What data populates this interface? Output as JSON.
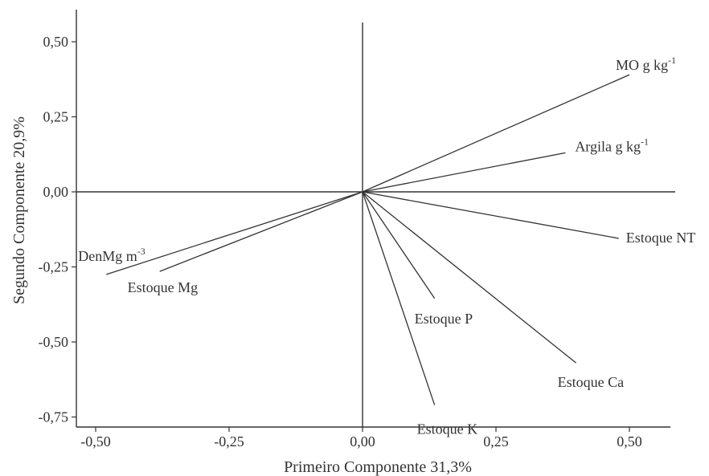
{
  "chart_data": {
    "type": "scatter",
    "subtype": "pca-biplot-vectors",
    "xlabel": "Primeiro Componente  31,3%",
    "ylabel": "Segundo Componente  20,9%",
    "xlim": [
      -0.58,
      0.58
    ],
    "ylim": [
      -0.78,
      0.61
    ],
    "x_ticks": [
      -0.5,
      -0.25,
      0.0,
      0.25,
      0.5
    ],
    "x_tick_labels": [
      "-0,50",
      "-0,25",
      "0,00",
      "0,25",
      "0,50"
    ],
    "y_ticks": [
      0.5,
      0.25,
      0.0,
      -0.5,
      -0.75
    ],
    "y_tick_labels": [
      "0,50",
      "0,25",
      "0,00",
      "-0,50",
      "-0,75"
    ],
    "y_tick_extra": {
      "value": -0.25,
      "label": "-0,25"
    },
    "grid": false,
    "zero_lines": true,
    "vectors": [
      {
        "id": "mo",
        "label": "MO g kg",
        "superscript": "-1",
        "x": 0.5,
        "y": 0.39,
        "color": "#333333"
      },
      {
        "id": "argila",
        "label": "Argila g kg",
        "superscript": "-1",
        "x": 0.38,
        "y": 0.13,
        "color": "#333333"
      },
      {
        "id": "nt",
        "label": "Estoque NT",
        "superscript": "",
        "x": 0.48,
        "y": -0.155,
        "color": "#333333"
      },
      {
        "id": "ca",
        "label": "Estoque Ca",
        "superscript": "",
        "x": 0.4,
        "y": -0.57,
        "color": "#333333"
      },
      {
        "id": "p",
        "label": "Estoque  P",
        "superscript": "",
        "x": 0.135,
        "y": -0.355,
        "color": "#888888"
      },
      {
        "id": "k",
        "label": "Estoque  K",
        "superscript": "",
        "x": 0.135,
        "y": -0.71,
        "color": "#333333"
      },
      {
        "id": "den",
        "label": "DenMg m",
        "superscript": "-3",
        "x": -0.48,
        "y": -0.275,
        "color": "#333333"
      },
      {
        "id": "mg",
        "label": "Estoque Mg",
        "superscript": "",
        "x": -0.38,
        "y": -0.265,
        "color": "#333333"
      }
    ]
  }
}
